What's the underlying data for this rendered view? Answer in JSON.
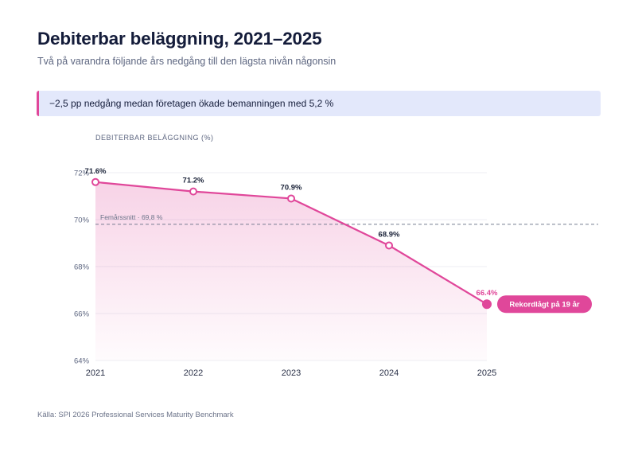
{
  "header": {
    "title": "Debiterbar beläggning, 2021–2025",
    "subtitle": "Två på varandra följande års nedgång till den lägsta nivån någonsin"
  },
  "callout": {
    "text": "−2,5 pp nedgång medan företagen ökade bemanningen med 5,2 %",
    "accent_color": "#e0479a",
    "background_color": "#e3e8fb"
  },
  "source": "Källa: SPI 2026 Professional Services Maturity Benchmark",
  "chart_data": {
    "type": "area",
    "ylabel": "DEBITERBAR BELÄGGNING (%)",
    "xlabel": "",
    "x": [
      "2021",
      "2022",
      "2023",
      "2024",
      "2025"
    ],
    "series": [
      {
        "values": [
          71.6,
          71.2,
          70.9,
          68.9,
          66.4
        ],
        "labels": [
          "71.6%",
          "71.2%",
          "70.9%",
          "68.9%",
          "66.4%"
        ],
        "color": "#e0479a"
      }
    ],
    "ylim": [
      64,
      72
    ],
    "yticks": [
      64,
      66,
      68,
      70,
      72
    ],
    "ytick_labels": [
      "64%",
      "66%",
      "68%",
      "70%",
      "72%"
    ],
    "grid": true,
    "reference_line": {
      "value": 69.8,
      "label": "Femårssnitt · 69,8 %"
    },
    "annotation": {
      "x": "2025",
      "text": "Rekordlågt på 19 år"
    }
  }
}
